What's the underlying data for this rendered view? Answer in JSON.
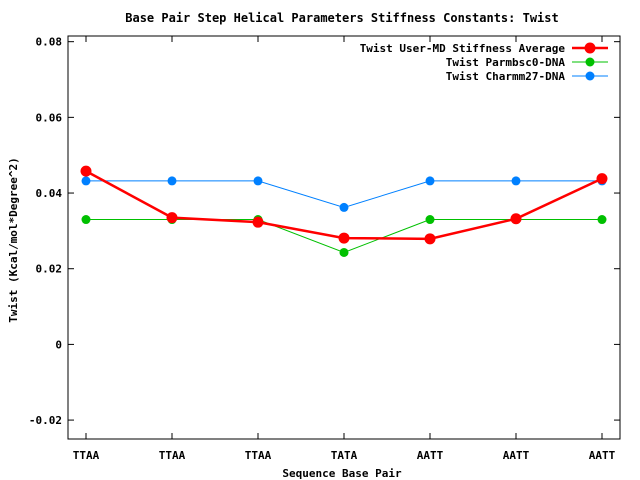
{
  "chart_data": {
    "type": "line",
    "title": "Base Pair Step Helical Parameters Stiffness Constants: Twist",
    "xlabel": "Sequence Base Pair",
    "ylabel": "Twist (Kcal/mol*Degree^2)",
    "categories": [
      "TTAA",
      "TTAA",
      "TTAA",
      "TATA",
      "AATT",
      "AATT",
      "AATT"
    ],
    "ylim": [
      -0.025,
      0.0815
    ],
    "yticks": [
      -0.02,
      0,
      0.02,
      0.04,
      0.06,
      0.08
    ],
    "ytick_labels": [
      "-0.02",
      "0",
      "0.02",
      "0.04",
      "0.06",
      "0.08"
    ],
    "grid": false,
    "legend_position": "top-right",
    "series": [
      {
        "name": "Twist User-MD Stiffness Average",
        "color": "#ff0000",
        "values": [
          0.0458,
          0.0335,
          0.0323,
          0.0281,
          0.0279,
          0.0332,
          0.0438
        ]
      },
      {
        "name": "Twist Parmbsc0-DNA",
        "color": "#00c000",
        "values": [
          0.033,
          0.033,
          0.033,
          0.0243,
          0.033,
          0.033,
          0.033
        ]
      },
      {
        "name": "Twist Charmm27-DNA",
        "color": "#0080ff",
        "values": [
          0.0432,
          0.0432,
          0.0432,
          0.0362,
          0.0432,
          0.0432,
          0.0432
        ]
      }
    ]
  }
}
